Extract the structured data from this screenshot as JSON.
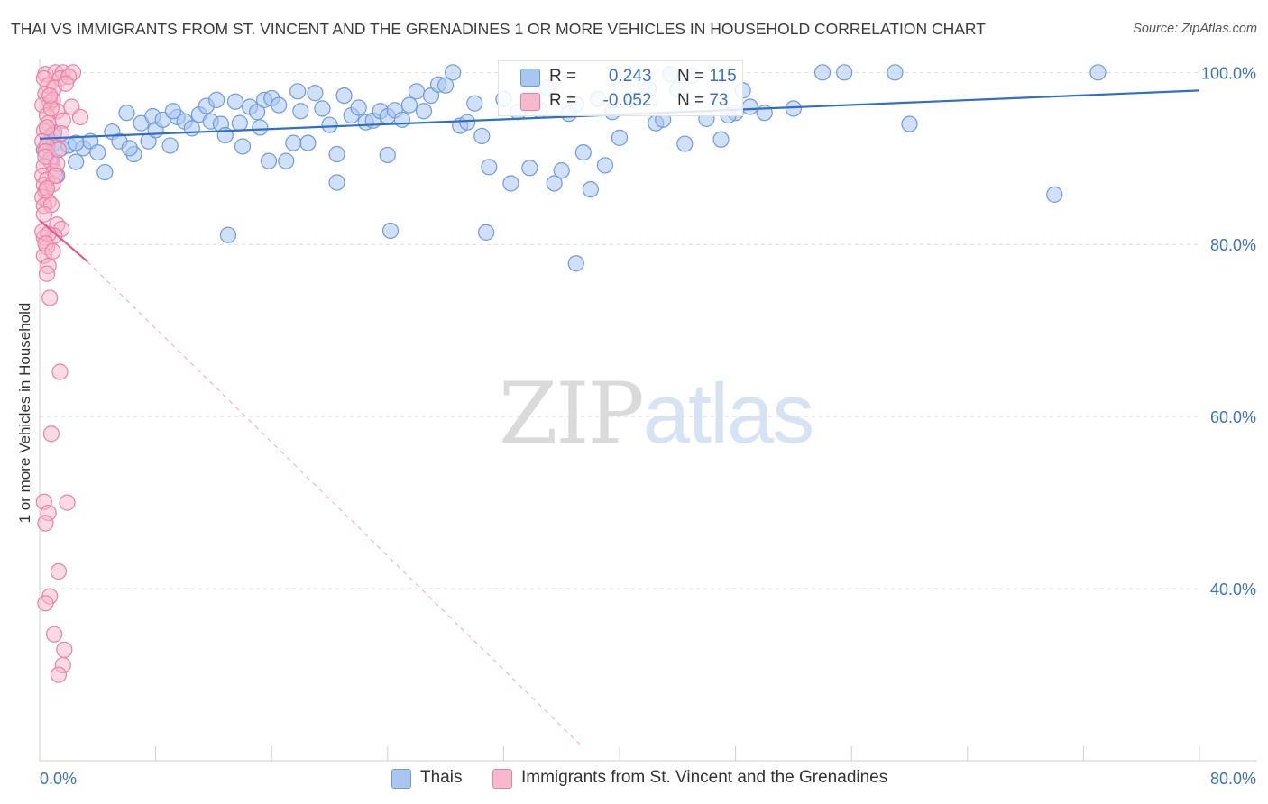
{
  "header": {
    "title": "THAI VS IMMIGRANTS FROM ST. VINCENT AND THE GRENADINES 1 OR MORE VEHICLES IN HOUSEHOLD CORRELATION CHART",
    "source": "Source: ZipAtlas.com"
  },
  "watermark": {
    "zip": "ZIP",
    "atlas": "atlas"
  },
  "legend": {
    "r_label": "R =",
    "n_label": "N =",
    "series1": {
      "r": "0.243",
      "n": "115"
    },
    "series2": {
      "r": "-0.052",
      "n": "73"
    }
  },
  "colors": {
    "blue_fill": "#a9c6ef",
    "blue_stroke": "#6e9be0",
    "blue_line": "#2f6fc9",
    "pink_fill": "#f5b8cc",
    "pink_stroke": "#ee7fa2",
    "pink_line": "#e8578a",
    "axis_text": "#3a72c8"
  },
  "chart_data": {
    "type": "scatter",
    "title": "THAI VS IMMIGRANTS FROM ST. VINCENT AND THE GRENADINES 1 OR MORE VEHICLES IN HOUSEHOLD CORRELATION CHART",
    "xlabel": "",
    "ylabel": "1 or more Vehicles in Household",
    "xlim": [
      0,
      80
    ],
    "ylim": [
      20,
      101.5
    ],
    "x_tick_labels": [
      "0.0%",
      "80.0%"
    ],
    "y_ticks": [
      40,
      60,
      80,
      100
    ],
    "y_tick_labels": [
      "40.0%",
      "60.0%",
      "80.0%",
      "100.0%"
    ],
    "grid": true,
    "legend_position": "top-center",
    "series": [
      {
        "name": "Thais",
        "color": "#a9c6ef",
        "r": 0.243,
        "n": 115,
        "trend": {
          "x": [
            0,
            80
          ],
          "y": [
            92.3,
            97.9
          ],
          "dashed_extension": false
        },
        "points": [
          [
            0.3,
            91.0
          ],
          [
            0.5,
            91.5
          ],
          [
            0.6,
            92.3
          ],
          [
            0.8,
            89.6
          ],
          [
            1.0,
            91.8
          ],
          [
            1.2,
            88.0
          ],
          [
            1.5,
            91.2
          ],
          [
            2.0,
            91.5
          ],
          [
            2.5,
            89.6
          ],
          [
            3.0,
            91.2
          ],
          [
            3.5,
            92.0
          ],
          [
            4.0,
            90.7
          ],
          [
            4.5,
            88.4
          ],
          [
            5.0,
            93.1
          ],
          [
            5.5,
            92.0
          ],
          [
            6.0,
            95.3
          ],
          [
            6.5,
            90.5
          ],
          [
            7.0,
            94.1
          ],
          [
            7.5,
            92.0
          ],
          [
            7.8,
            94.9
          ],
          [
            8.0,
            93.3
          ],
          [
            8.5,
            94.5
          ],
          [
            9.0,
            91.5
          ],
          [
            9.5,
            94.8
          ],
          [
            10.0,
            94.3
          ],
          [
            10.5,
            93.5
          ],
          [
            11.0,
            95.1
          ],
          [
            11.5,
            96.1
          ],
          [
            11.8,
            94.3
          ],
          [
            12.2,
            96.8
          ],
          [
            12.5,
            94.0
          ],
          [
            12.8,
            92.7
          ],
          [
            13.0,
            81.1
          ],
          [
            13.5,
            96.6
          ],
          [
            13.8,
            94.1
          ],
          [
            14.0,
            91.4
          ],
          [
            14.5,
            96.0
          ],
          [
            15.0,
            95.4
          ],
          [
            15.5,
            96.8
          ],
          [
            15.8,
            89.7
          ],
          [
            16.0,
            97.0
          ],
          [
            16.5,
            96.2
          ],
          [
            17.0,
            89.7
          ],
          [
            17.5,
            91.8
          ],
          [
            17.8,
            97.8
          ],
          [
            18.0,
            95.5
          ],
          [
            18.5,
            91.8
          ],
          [
            19.0,
            97.6
          ],
          [
            19.5,
            95.8
          ],
          [
            20.0,
            93.9
          ],
          [
            20.5,
            90.5
          ],
          [
            20.5,
            87.2
          ],
          [
            21.0,
            97.3
          ],
          [
            21.5,
            95.0
          ],
          [
            22.0,
            95.9
          ],
          [
            22.5,
            94.2
          ],
          [
            23.0,
            94.4
          ],
          [
            23.5,
            95.5
          ],
          [
            24.0,
            94.9
          ],
          [
            24.5,
            95.6
          ],
          [
            25.0,
            94.5
          ],
          [
            25.5,
            96.2
          ],
          [
            26.0,
            97.8
          ],
          [
            26.5,
            95.5
          ],
          [
            27.0,
            97.3
          ],
          [
            27.5,
            98.6
          ],
          [
            28.0,
            98.5
          ],
          [
            28.5,
            100.0
          ],
          [
            29.0,
            93.8
          ],
          [
            29.5,
            94.2
          ],
          [
            30.0,
            96.4
          ],
          [
            30.5,
            92.6
          ],
          [
            31.0,
            89.0
          ],
          [
            32.0,
            96.9
          ],
          [
            32.5,
            87.1
          ],
          [
            33.0,
            95.4
          ],
          [
            34.0,
            96.3
          ],
          [
            34.5,
            95.6
          ],
          [
            35.0,
            98.2
          ],
          [
            35.5,
            87.1
          ],
          [
            36.0,
            88.6
          ],
          [
            37.0,
            96.3
          ],
          [
            37.5,
            90.7
          ],
          [
            38.0,
            86.4
          ],
          [
            38.5,
            96.9
          ],
          [
            39.0,
            89.2
          ],
          [
            39.5,
            95.4
          ],
          [
            40.0,
            92.4
          ],
          [
            41.0,
            96.8
          ],
          [
            42.0,
            98.1
          ],
          [
            42.5,
            94.1
          ],
          [
            43.0,
            94.5
          ],
          [
            43.5,
            99.8
          ],
          [
            44.0,
            98.0
          ],
          [
            45.0,
            99.6
          ],
          [
            46.0,
            94.6
          ],
          [
            47.0,
            92.2
          ],
          [
            48.0,
            95.3
          ],
          [
            48.5,
            97.9
          ],
          [
            49.0,
            96.0
          ],
          [
            50.0,
            95.3
          ],
          [
            52.0,
            95.8
          ],
          [
            54.0,
            100.0
          ],
          [
            55.5,
            100.0
          ],
          [
            59.0,
            100.0
          ],
          [
            60.0,
            94.0
          ],
          [
            70.0,
            85.8
          ],
          [
            73.0,
            100.0
          ],
          [
            1.0,
            93.0
          ],
          [
            2.5,
            91.8
          ],
          [
            6.2,
            91.2
          ],
          [
            9.2,
            95.5
          ],
          [
            15.2,
            93.6
          ],
          [
            24.0,
            90.4
          ],
          [
            33.8,
            88.9
          ],
          [
            36.5,
            95.2
          ],
          [
            44.5,
            91.7
          ],
          [
            47.5,
            95.0
          ],
          [
            24.2,
            81.6
          ],
          [
            30.8,
            81.4
          ],
          [
            37.0,
            77.8
          ]
        ]
      },
      {
        "name": "Immigrants from St. Vincent and the Grenadines",
        "color": "#f5b8cc",
        "r": -0.052,
        "n": 73,
        "trend": {
          "x": [
            0,
            3.3
          ],
          "y": [
            82.8,
            78.0
          ],
          "dashed_extension": {
            "x": [
              3.3,
              37.5
            ],
            "y": [
              78.0,
              21.5
            ]
          }
        },
        "points": [
          [
            0.4,
            99.8
          ],
          [
            1.1,
            100.0
          ],
          [
            1.6,
            100.0
          ],
          [
            2.3,
            100.0
          ],
          [
            0.3,
            99.3
          ],
          [
            1.4,
            99.3
          ],
          [
            0.6,
            98.5
          ],
          [
            1.0,
            98.2
          ],
          [
            0.4,
            97.5
          ],
          [
            0.7,
            96.5
          ],
          [
            2.2,
            96.0
          ],
          [
            0.2,
            96.2
          ],
          [
            1.2,
            95.5
          ],
          [
            0.5,
            95.0
          ],
          [
            2.8,
            94.8
          ],
          [
            0.6,
            94.1
          ],
          [
            1.6,
            94.4
          ],
          [
            0.3,
            93.2
          ],
          [
            0.9,
            92.7
          ],
          [
            0.2,
            92.0
          ],
          [
            0.5,
            91.5
          ],
          [
            0.4,
            90.8
          ],
          [
            0.7,
            89.8
          ],
          [
            0.3,
            89.1
          ],
          [
            1.0,
            88.5
          ],
          [
            0.2,
            88.0
          ],
          [
            0.5,
            87.5
          ],
          [
            0.3,
            86.9
          ],
          [
            0.4,
            86.2
          ],
          [
            0.2,
            85.5
          ],
          [
            0.6,
            85.0
          ],
          [
            0.3,
            84.5
          ],
          [
            1.2,
            82.3
          ],
          [
            1.5,
            81.8
          ],
          [
            0.3,
            80.8
          ],
          [
            1.0,
            81.0
          ],
          [
            0.5,
            79.7
          ],
          [
            0.3,
            78.7
          ],
          [
            0.6,
            77.5
          ],
          [
            0.5,
            76.6
          ],
          [
            0.7,
            73.8
          ],
          [
            1.4,
            65.2
          ],
          [
            0.8,
            58.0
          ],
          [
            0.3,
            50.1
          ],
          [
            1.9,
            50.0
          ],
          [
            0.6,
            48.8
          ],
          [
            0.4,
            47.6
          ],
          [
            1.3,
            42.0
          ],
          [
            0.7,
            39.1
          ],
          [
            0.4,
            38.3
          ],
          [
            1.0,
            34.7
          ],
          [
            1.7,
            32.9
          ],
          [
            1.6,
            31.1
          ],
          [
            1.3,
            30.0
          ],
          [
            2.0,
            99.5
          ],
          [
            1.8,
            98.7
          ],
          [
            0.9,
            96.8
          ],
          [
            0.8,
            95.8
          ],
          [
            1.5,
            92.9
          ],
          [
            0.4,
            90.2
          ],
          [
            1.2,
            89.4
          ],
          [
            0.9,
            87.0
          ],
          [
            0.5,
            86.5
          ],
          [
            0.8,
            84.6
          ],
          [
            0.3,
            83.5
          ],
          [
            0.2,
            81.5
          ],
          [
            0.6,
            81.2
          ],
          [
            0.4,
            80.1
          ],
          [
            0.9,
            79.2
          ],
          [
            1.1,
            88.0
          ],
          [
            0.7,
            97.3
          ],
          [
            0.5,
            93.6
          ],
          [
            1.3,
            91.0
          ]
        ]
      }
    ]
  },
  "bottom_legend": {
    "items": [
      {
        "label": "Thais"
      },
      {
        "label": "Immigrants from St. Vincent and the Grenadines"
      }
    ]
  }
}
